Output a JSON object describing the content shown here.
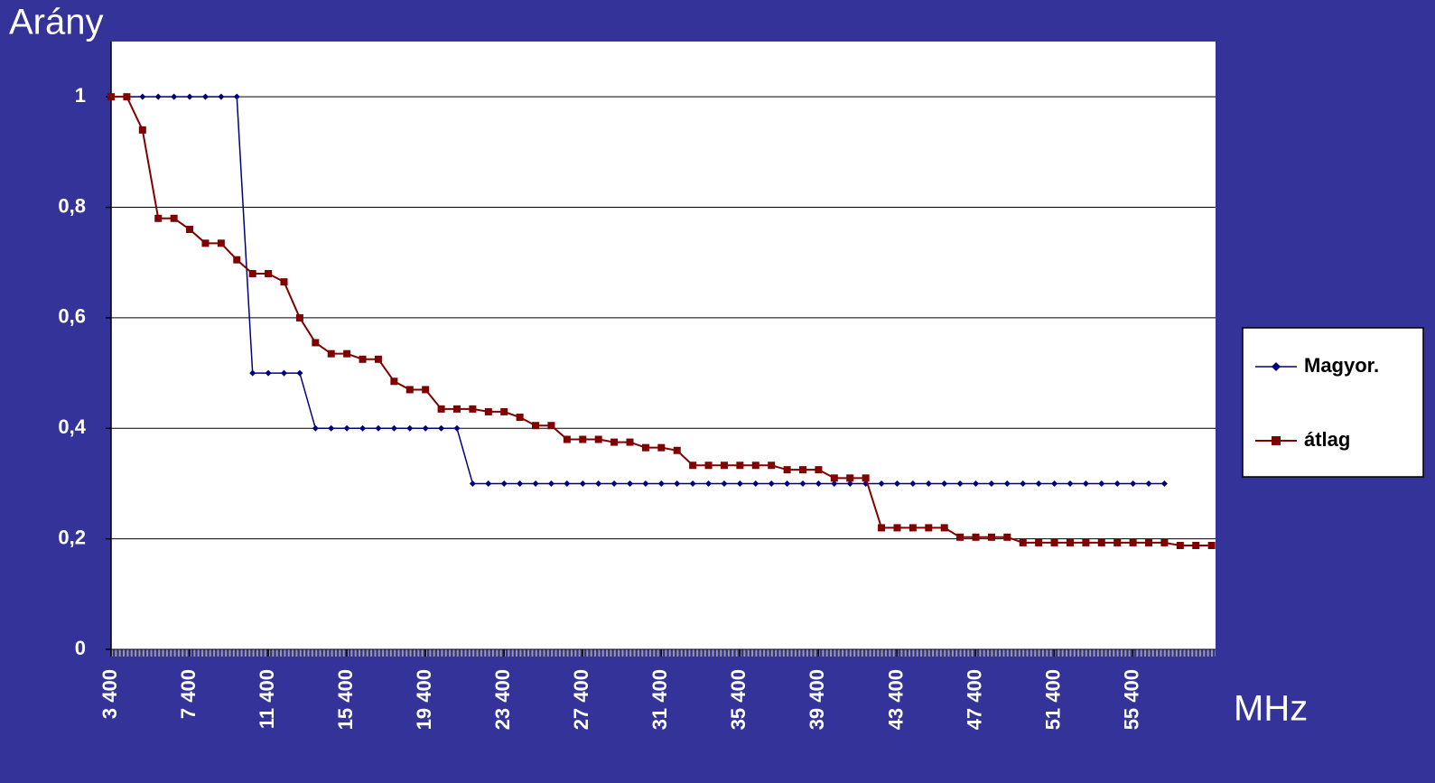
{
  "chart_data": {
    "type": "line",
    "y_label": "Arány",
    "x_label": "MHz",
    "x": [
      3400,
      4200,
      5000,
      5800,
      6600,
      7400,
      8200,
      9000,
      9800,
      10600,
      11400,
      12200,
      13000,
      13800,
      14600,
      15400,
      16200,
      17000,
      17800,
      18600,
      19400,
      20200,
      21000,
      21800,
      22600,
      23400,
      24200,
      25000,
      25800,
      26600,
      27400,
      28200,
      29000,
      29800,
      30600,
      31400,
      32200,
      33000,
      33800,
      34600,
      35400,
      36200,
      37000,
      37800,
      38600,
      39400,
      40200,
      41000,
      41800,
      42600,
      43400,
      44200,
      45000,
      45800,
      46600,
      47400,
      48200,
      49000,
      49800,
      50600,
      51400,
      52200,
      53000,
      53800,
      54600,
      55400,
      56200,
      57000,
      57800,
      58600,
      59400
    ],
    "series": [
      {
        "name": "Magyor.",
        "color": "#000080",
        "marker": "diamond",
        "values": [
          1,
          1,
          1,
          1,
          1,
          1,
          1,
          1,
          1,
          0.5,
          0.5,
          0.5,
          0.5,
          0.4,
          0.4,
          0.4,
          0.4,
          0.4,
          0.4,
          0.4,
          0.4,
          0.4,
          0.4,
          0.3,
          0.3,
          0.3,
          0.3,
          0.3,
          0.3,
          0.3,
          0.3,
          0.3,
          0.3,
          0.3,
          0.3,
          0.3,
          0.3,
          0.3,
          0.3,
          0.3,
          0.3,
          0.3,
          0.3,
          0.3,
          0.3,
          0.3,
          0.3,
          0.3,
          0.3,
          0.3,
          0.3,
          0.3,
          0.3,
          0.3,
          0.3,
          0.3,
          0.3,
          0.3,
          0.3,
          0.3,
          0.3,
          0.3,
          0.3,
          0.3,
          0.3,
          0.3,
          0.3,
          0.3,
          null,
          null,
          null
        ]
      },
      {
        "name": "átlag",
        "color": "#800000",
        "marker": "square",
        "values": [
          1,
          1,
          0.94,
          0.78,
          0.78,
          0.76,
          0.735,
          0.735,
          0.705,
          0.68,
          0.68,
          0.665,
          0.6,
          0.555,
          0.535,
          0.535,
          0.525,
          0.525,
          0.485,
          0.47,
          0.47,
          0.435,
          0.435,
          0.435,
          0.43,
          0.43,
          0.42,
          0.405,
          0.405,
          0.38,
          0.38,
          0.38,
          0.375,
          0.375,
          0.365,
          0.365,
          0.36,
          0.333,
          0.333,
          0.333,
          0.333,
          0.333,
          0.333,
          0.325,
          0.325,
          0.325,
          0.31,
          0.31,
          0.31,
          0.22,
          0.22,
          0.22,
          0.22,
          0.22,
          0.203,
          0.203,
          0.203,
          0.203,
          0.193,
          0.193,
          0.193,
          0.193,
          0.193,
          0.193,
          0.193,
          0.193,
          0.193,
          0.193,
          0.188,
          0.188,
          0.188
        ]
      }
    ],
    "xlim": [
      3400,
      59600
    ],
    "ylim": [
      0,
      1.1
    ],
    "xticks": [
      {
        "value": 3400,
        "label": "3 400"
      },
      {
        "value": 7400,
        "label": "7 400"
      },
      {
        "value": 11400,
        "label": "11 400"
      },
      {
        "value": 15400,
        "label": "15 400"
      },
      {
        "value": 19400,
        "label": "19 400"
      },
      {
        "value": 23400,
        "label": "23 400"
      },
      {
        "value": 27400,
        "label": "27 400"
      },
      {
        "value": 31400,
        "label": "31 400"
      },
      {
        "value": 35400,
        "label": "35 400"
      },
      {
        "value": 39400,
        "label": "39 400"
      },
      {
        "value": 43400,
        "label": "43 400"
      },
      {
        "value": 47400,
        "label": "47 400"
      },
      {
        "value": 51400,
        "label": "51 400"
      },
      {
        "value": 55400,
        "label": "55 400"
      }
    ],
    "yticks": [
      0,
      {
        "value": 0.2,
        "label": "0,2"
      },
      {
        "value": 0.4,
        "label": "0,4"
      },
      {
        "value": 0.6,
        "label": "0,6"
      },
      {
        "value": 0.8,
        "label": "0,8"
      },
      1
    ],
    "grid": true,
    "legend": "right"
  }
}
